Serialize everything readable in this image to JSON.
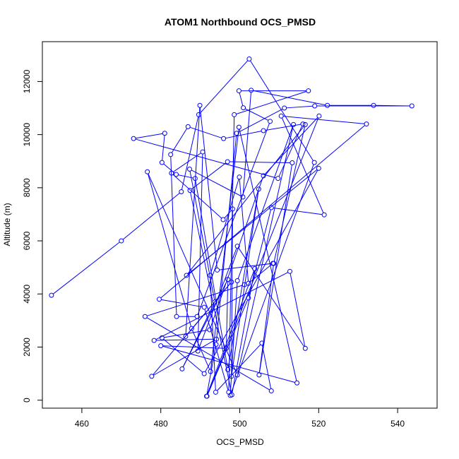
{
  "chart_data": {
    "type": "line",
    "title": "ATOM1 Northbound OCS_PMSD",
    "xlabel": "OCS_PMSD",
    "ylabel": "Altitude (m)",
    "xlim": [
      450,
      550
    ],
    "ylim": [
      -300,
      13500
    ],
    "x_ticks": [
      460,
      480,
      500,
      520,
      540
    ],
    "y_ticks": [
      0,
      2000,
      4000,
      6000,
      8000,
      10000,
      12000
    ],
    "grid": false,
    "legend": "none",
    "series_color": "#0000ff",
    "points": [
      [
        452.3,
        3950
      ],
      [
        470.0,
        6000
      ],
      [
        485.2,
        7850
      ],
      [
        489.6,
        10750
      ],
      [
        502.4,
        12850
      ],
      [
        518.9,
        8950
      ],
      [
        497.6,
        180
      ],
      [
        499.4,
        4500
      ],
      [
        513.6,
        10380
      ],
      [
        499.4,
        950
      ],
      [
        476.6,
        8600
      ],
      [
        487.8,
        2700
      ],
      [
        492.6,
        1080
      ],
      [
        499.8,
        10280
      ],
      [
        514.5,
        650
      ],
      [
        480.0,
        2050
      ],
      [
        496.6,
        1950
      ],
      [
        497.0,
        4550
      ],
      [
        485.4,
        1180
      ],
      [
        493.7,
        3700
      ],
      [
        487.3,
        8700
      ],
      [
        500.8,
        7650
      ],
      [
        502.9,
        11670
      ],
      [
        522.2,
        11100
      ],
      [
        533.9,
        11100
      ],
      [
        543.6,
        11080
      ],
      [
        519.0,
        11080
      ],
      [
        511.3,
        11000
      ],
      [
        499.2,
        10050
      ],
      [
        494.0,
        2100
      ],
      [
        491.6,
        150
      ],
      [
        503.8,
        4950
      ],
      [
        498.0,
        200
      ],
      [
        487.4,
        7900
      ],
      [
        496.9,
        8980
      ],
      [
        513.3,
        8940
      ],
      [
        504.9,
        950
      ],
      [
        508.6,
        5150
      ],
      [
        516.6,
        10380
      ],
      [
        486.5,
        4700
      ],
      [
        520.0,
        8730
      ],
      [
        491.0,
        1000
      ],
      [
        480.3,
        2350
      ],
      [
        492.4,
        2650
      ],
      [
        506.0,
        8450
      ],
      [
        520.1,
        10700
      ],
      [
        491.7,
        150
      ],
      [
        502.2,
        3850
      ],
      [
        508.0,
        7250
      ],
      [
        521.4,
        6980
      ],
      [
        510.5,
        10700
      ],
      [
        532.1,
        10400
      ],
      [
        479.6,
        3800
      ],
      [
        491.0,
        3500
      ],
      [
        497.2,
        300
      ],
      [
        498.6,
        10750
      ],
      [
        517.4,
        11650
      ],
      [
        499.8,
        11650
      ],
      [
        500.9,
        11010
      ],
      [
        507.7,
        10500
      ],
      [
        489.2,
        3150
      ],
      [
        484.0,
        3150
      ],
      [
        482.5,
        9250
      ],
      [
        486.9,
        10300
      ],
      [
        495.9,
        9850
      ],
      [
        506.0,
        10150
      ],
      [
        516.0,
        10400
      ],
      [
        509.7,
        8350
      ],
      [
        473.1,
        9850
      ],
      [
        481.0,
        10050
      ],
      [
        480.3,
        8950
      ],
      [
        483.9,
        8500
      ],
      [
        488.7,
        8350
      ],
      [
        497.0,
        1150
      ],
      [
        504.8,
        7950
      ],
      [
        497.9,
        900
      ],
      [
        498.2,
        7200
      ],
      [
        495.8,
        6800
      ],
      [
        482.7,
        8550
      ],
      [
        490.6,
        9350
      ],
      [
        489.4,
        1850
      ],
      [
        499.4,
        5800
      ],
      [
        516.6,
        1950
      ],
      [
        512.7,
        4850
      ],
      [
        478.3,
        2250
      ],
      [
        494.1,
        2300
      ],
      [
        477.7,
        900
      ],
      [
        497.9,
        4450
      ],
      [
        486.3,
        2400
      ],
      [
        489.9,
        11100
      ],
      [
        494.3,
        4900
      ],
      [
        508.4,
        5150
      ],
      [
        502.2,
        4400
      ],
      [
        499.9,
        8400
      ],
      [
        492.5,
        4700
      ],
      [
        493.9,
        300
      ],
      [
        505.6,
        2150
      ],
      [
        508.0,
        350
      ],
      [
        476.0,
        3150
      ],
      [
        501.2,
        4350
      ]
    ]
  }
}
